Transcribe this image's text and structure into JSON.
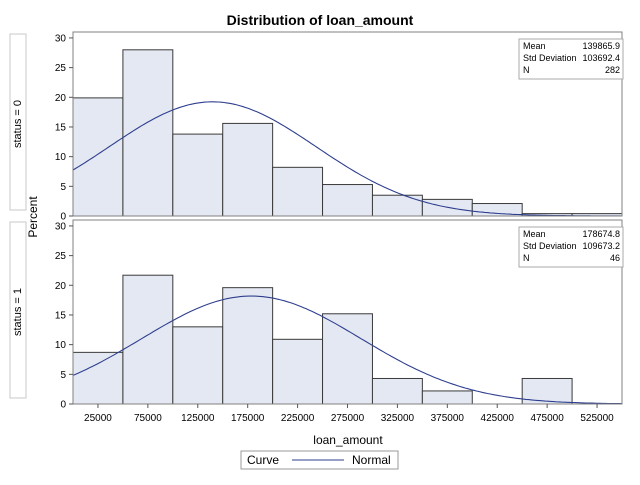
{
  "chart_data": {
    "type": "bar",
    "title": "Distribution of loan_amount",
    "xlabel": "loan_amount",
    "ylabel": "Percent",
    "xlim": [
      0,
      550000
    ],
    "ylim": [
      0,
      31
    ],
    "bin_width": 50000,
    "x_ticks": [
      "25000",
      "75000",
      "125000",
      "175000",
      "225000",
      "275000",
      "325000",
      "375000",
      "425000",
      "475000",
      "525000"
    ],
    "y_ticks": [
      "0",
      "5",
      "10",
      "15",
      "20",
      "25",
      "30"
    ],
    "panels": [
      {
        "label": "status = 0",
        "bins": [
          25000,
          75000,
          125000,
          175000,
          225000,
          275000,
          325000,
          375000,
          425000,
          475000,
          525000
        ],
        "values": [
          19.9,
          28.0,
          13.8,
          15.6,
          8.2,
          5.3,
          3.5,
          2.8,
          2.1,
          0.4,
          0.4
        ],
        "stats": {
          "mean_label": "Mean",
          "mean": "139865.9",
          "sd_label": "Std Deviation",
          "sd": "103692.4",
          "n_label": "N",
          "n": "282"
        },
        "normal": {
          "mean": 139865.9,
          "sd": 103692.4
        }
      },
      {
        "label": "status = 1",
        "bins": [
          25000,
          75000,
          125000,
          175000,
          225000,
          275000,
          325000,
          375000,
          425000,
          475000
        ],
        "values": [
          8.7,
          21.7,
          13.0,
          19.6,
          10.9,
          15.2,
          4.3,
          2.2,
          0,
          4.3
        ],
        "stats": {
          "mean_label": "Mean",
          "mean": "178674.8",
          "sd_label": "Std Deviation",
          "sd": "109673.2",
          "n_label": "N",
          "n": "46"
        },
        "normal": {
          "mean": 178674.8,
          "sd": 109673.2
        }
      }
    ],
    "legend": {
      "title": "Curve",
      "entry": "Normal"
    },
    "grid": false
  }
}
